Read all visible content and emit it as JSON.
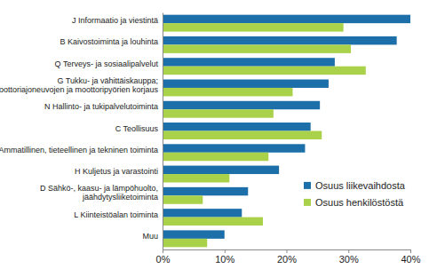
{
  "chart_data": {
    "type": "bar",
    "orientation": "horizontal",
    "categories": [
      "J Informaatio ja viestintä",
      "B Kaivostoiminta ja louhinta",
      "Q Terveys- ja sosiaalipalvelut",
      "G Tukku- ja vähittäiskauppa;\nmoottoriajoneuvojen ja moottoripyörien korjaus",
      "N Hallinto- ja tukipalvelutoiminta",
      "C Teollisuus",
      "M Ammatillinen, tieteellinen ja tekninen toiminta",
      "H Kuljetus ja varastointi",
      "D Sähkö-, kaasu- ja lämpöhuolto,\njäähdytysliiketoiminta",
      "L Kiinteistöalan toiminta",
      "Muu"
    ],
    "series": [
      {
        "name": "Osuus liikevaihdosta",
        "color": "#1d6fa9",
        "values": [
          40.0,
          37.8,
          27.8,
          26.8,
          25.4,
          23.9,
          23.0,
          18.8,
          13.8,
          12.8,
          10.0
        ]
      },
      {
        "name": "Osuus henkilöstöstä",
        "color": "#a9d24a",
        "values": [
          29.2,
          30.4,
          32.8,
          21.0,
          17.9,
          25.7,
          17.1,
          10.8,
          6.5,
          16.2,
          7.2
        ]
      }
    ],
    "xlim": [
      0,
      40
    ],
    "xticks": [
      {
        "value": 0,
        "label": "0%"
      },
      {
        "value": 10,
        "label": "10%"
      },
      {
        "value": 20,
        "label": "20%"
      },
      {
        "value": 30,
        "label": "30%"
      },
      {
        "value": 40,
        "label": "40%"
      }
    ],
    "grid": false,
    "legend": "lower right"
  }
}
